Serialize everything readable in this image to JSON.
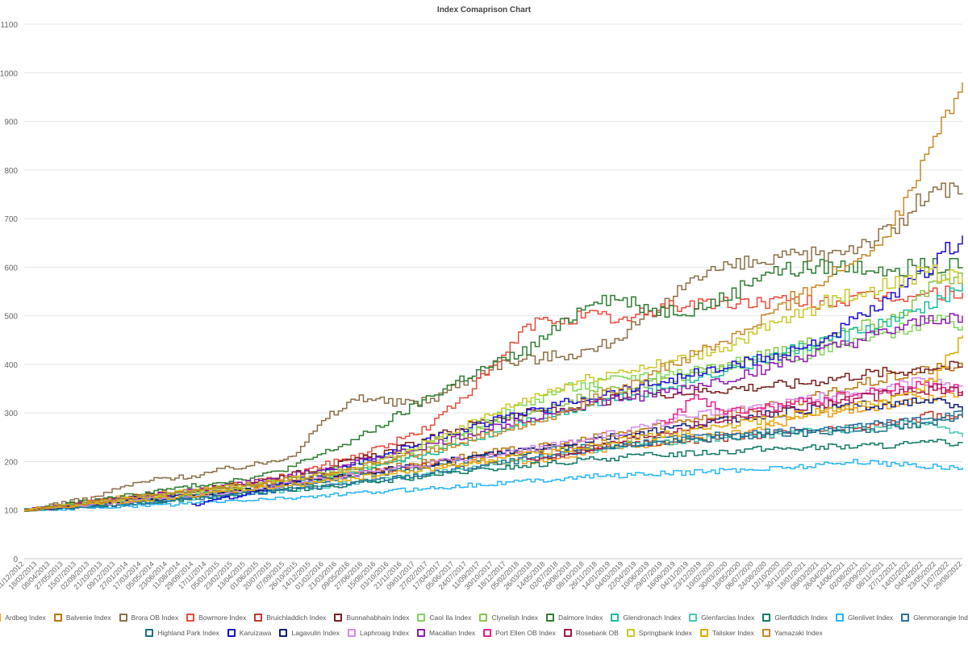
{
  "chart_data": {
    "type": "line",
    "title": "Index Comaprison Chart",
    "xlabel": "",
    "ylabel": "",
    "ylim": [
      0,
      1100
    ],
    "yticks": [
      0,
      100,
      200,
      300,
      400,
      500,
      600,
      700,
      800,
      900,
      1000,
      1100
    ],
    "grid": "horizontal",
    "legend_position": "bottom",
    "x_tick_labels": [
      "31/12/2012",
      "18/02/2013",
      "08/04/2013",
      "27/05/2013",
      "15/07/2013",
      "02/09/2013",
      "21/10/2013",
      "09/12/2013",
      "27/01/2014",
      "17/03/2014",
      "05/05/2014",
      "23/06/2014",
      "11/08/2014",
      "29/09/2014",
      "17/11/2014",
      "05/01/2015",
      "23/02/2015",
      "13/04/2015",
      "01/06/2015",
      "20/07/2015",
      "07/09/2015",
      "26/10/2015",
      "14/12/2015",
      "01/02/2016",
      "21/03/2016",
      "09/05/2016",
      "27/06/2016",
      "15/08/2016",
      "03/10/2016",
      "21/11/2016",
      "09/01/2017",
      "27/02/2017",
      "17/04/2017",
      "05/06/2017",
      "24/07/2017",
      "11/09/2017",
      "30/10/2017",
      "18/12/2017",
      "05/02/2018",
      "26/03/2018",
      "14/05/2018",
      "02/07/2018",
      "20/08/2018",
      "08/10/2018",
      "26/11/2018",
      "14/01/2019",
      "04/03/2019",
      "22/04/2019",
      "10/06/2019",
      "29/07/2019",
      "16/09/2019",
      "04/11/2019",
      "23/12/2019",
      "10/02/2020",
      "30/03/2020",
      "18/05/2020",
      "06/07/2020",
      "24/08/2020",
      "12/10/2020",
      "30/11/2020",
      "18/01/2021",
      "08/03/2021",
      "26/04/2021",
      "14/06/2021",
      "02/08/2021",
      "20/09/2021",
      "08/11/2021",
      "27/12/2021",
      "14/02/2022",
      "04/04/2022",
      "23/05/2022",
      "11/07/2022",
      "29/08/2022"
    ],
    "series": [
      {
        "name": "Ardbeg Index",
        "color": "#f39c12",
        "values": [
          100,
          110,
          118,
          128,
          135,
          140,
          150,
          155,
          162,
          170,
          178,
          185,
          190,
          195,
          200,
          200,
          210,
          225,
          230,
          240,
          250,
          255,
          265,
          290,
          300,
          310,
          320,
          330,
          345
        ]
      },
      {
        "name": "Balvenie Index",
        "color": "#b9770e",
        "values": [
          100,
          108,
          115,
          120,
          128,
          135,
          145,
          150,
          160,
          168,
          178,
          190,
          200,
          210,
          220,
          228,
          235,
          250,
          260,
          275,
          290,
          300,
          310,
          325,
          340,
          360,
          375,
          390,
          395
        ]
      },
      {
        "name": "Brora OB Index",
        "color": "#8b6f47",
        "values": [
          100,
          115,
          125,
          150,
          165,
          170,
          185,
          195,
          215,
          290,
          335,
          320,
          325,
          360,
          400,
          410,
          420,
          430,
          470,
          510,
          590,
          600,
          610,
          620,
          630,
          650,
          680,
          760,
          750
        ]
      },
      {
        "name": "Bowmore Index",
        "color": "#e74c3c",
        "values": [
          100,
          110,
          118,
          125,
          130,
          140,
          150,
          160,
          175,
          195,
          215,
          240,
          270,
          330,
          395,
          480,
          495,
          500,
          490,
          520,
          525,
          525,
          530,
          528,
          530,
          535,
          540,
          545,
          548
        ]
      },
      {
        "name": "Bruichladdich Index",
        "color": "#c0392b",
        "values": [
          100,
          106,
          112,
          118,
          125,
          130,
          138,
          145,
          155,
          165,
          175,
          185,
          195,
          205,
          215,
          220,
          225,
          230,
          235,
          240,
          245,
          250,
          255,
          260,
          265,
          270,
          280,
          295,
          290
        ]
      },
      {
        "name": "Bunnahabhain Index",
        "color": "#7b1f1f",
        "values": [
          100,
          108,
          116,
          125,
          135,
          140,
          150,
          160,
          175,
          190,
          205,
          225,
          245,
          270,
          290,
          300,
          305,
          320,
          335,
          340,
          345,
          350,
          355,
          360,
          370,
          380,
          385,
          395,
          395
        ]
      },
      {
        "name": "Caol Ila Index",
        "color": "#7ed957",
        "values": [
          100,
          108,
          115,
          122,
          130,
          136,
          145,
          152,
          165,
          180,
          195,
          215,
          235,
          260,
          290,
          320,
          350,
          360,
          375,
          380,
          390,
          400,
          410,
          420,
          430,
          450,
          470,
          490,
          480
        ]
      },
      {
        "name": "Clynelish Index",
        "color": "#8bc34a",
        "values": [
          100,
          106,
          112,
          118,
          125,
          130,
          138,
          145,
          155,
          170,
          185,
          200,
          225,
          250,
          280,
          300,
          320,
          340,
          355,
          365,
          380,
          400,
          420,
          440,
          460,
          480,
          500,
          560,
          580
        ]
      },
      {
        "name": "Dalmore Index",
        "color": "#2e7d32",
        "values": [
          100,
          110,
          120,
          130,
          140,
          150,
          160,
          170,
          190,
          220,
          250,
          290,
          330,
          370,
          400,
          430,
          480,
          540,
          530,
          510,
          515,
          540,
          590,
          595,
          600,
          600,
          600,
          600,
          600
        ]
      },
      {
        "name": "Glendronach Index",
        "color": "#1abc9c",
        "values": [
          100,
          106,
          112,
          118,
          124,
          130,
          138,
          145,
          155,
          165,
          180,
          195,
          215,
          235,
          260,
          285,
          300,
          320,
          335,
          350,
          370,
          390,
          410,
          430,
          450,
          470,
          490,
          520,
          570
        ]
      },
      {
        "name": "Glenfarclas Index",
        "color": "#48c9b0",
        "values": [
          100,
          104,
          108,
          112,
          118,
          124,
          130,
          136,
          142,
          150,
          158,
          166,
          175,
          185,
          195,
          205,
          215,
          225,
          235,
          240,
          245,
          250,
          255,
          260,
          265,
          270,
          275,
          280,
          250
        ]
      },
      {
        "name": "Glenfiddich Index",
        "color": "#117a65",
        "values": [
          100,
          104,
          108,
          112,
          118,
          124,
          130,
          136,
          142,
          148,
          155,
          162,
          170,
          178,
          185,
          192,
          198,
          205,
          210,
          215,
          218,
          222,
          225,
          228,
          230,
          232,
          234,
          238,
          240
        ]
      },
      {
        "name": "Glenlivet Index",
        "color": "#29b6f6",
        "values": [
          100,
          102,
          105,
          108,
          110,
          114,
          118,
          122,
          126,
          130,
          135,
          140,
          145,
          150,
          155,
          160,
          165,
          170,
          172,
          175,
          178,
          182,
          185,
          190,
          195,
          200,
          195,
          190,
          188
        ]
      },
      {
        "name": "Glenmorangie Index",
        "color": "#2471a3",
        "values": [
          100,
          104,
          108,
          112,
          118,
          124,
          130,
          136,
          142,
          150,
          158,
          166,
          175,
          185,
          195,
          205,
          215,
          225,
          235,
          245,
          250,
          255,
          260,
          265,
          270,
          275,
          280,
          290,
          300
        ]
      },
      {
        "name": "Highland Park Index",
        "color": "#1b6f8a",
        "values": [
          100,
          105,
          110,
          116,
          122,
          128,
          135,
          142,
          150,
          160,
          170,
          180,
          190,
          200,
          210,
          220,
          225,
          230,
          235,
          240,
          245,
          250,
          255,
          258,
          262,
          266,
          270,
          275,
          300
        ]
      },
      {
        "name": "Karuizawa",
        "color": "#1a0dd6",
        "values": [
          null,
          null,
          null,
          null,
          null,
          110,
          125,
          140,
          160,
          180,
          200,
          220,
          245,
          265,
          285,
          300,
          320,
          335,
          350,
          365,
          380,
          395,
          410,
          430,
          460,
          500,
          540,
          600,
          665
        ]
      },
      {
        "name": "Lagavulin Index",
        "color": "#0d1b7a",
        "values": [
          100,
          106,
          112,
          118,
          125,
          130,
          138,
          145,
          155,
          165,
          175,
          185,
          195,
          205,
          215,
          225,
          235,
          245,
          255,
          265,
          275,
          285,
          295,
          305,
          310,
          315,
          320,
          325,
          305
        ]
      },
      {
        "name": "Laphroaig Index",
        "color": "#d68ae8",
        "values": [
          100,
          106,
          112,
          118,
          125,
          130,
          138,
          145,
          155,
          165,
          175,
          185,
          195,
          205,
          215,
          225,
          235,
          250,
          265,
          280,
          295,
          305,
          315,
          325,
          335,
          345,
          355,
          370,
          355
        ]
      },
      {
        "name": "Macallan Index",
        "color": "#8e1ab0",
        "values": [
          100,
          108,
          116,
          124,
          132,
          140,
          150,
          160,
          172,
          185,
          200,
          215,
          232,
          250,
          270,
          290,
          305,
          320,
          330,
          340,
          355,
          370,
          390,
          410,
          430,
          450,
          470,
          490,
          500
        ]
      },
      {
        "name": "Port Ellen OB Index",
        "color": "#e91e8c",
        "values": [
          null,
          null,
          null,
          null,
          null,
          null,
          null,
          null,
          null,
          null,
          null,
          null,
          null,
          null,
          null,
          null,
          null,
          null,
          null,
          280,
          330,
          300,
          310,
          320,
          330,
          340,
          350,
          360,
          345
        ]
      },
      {
        "name": "Rosebank OB",
        "color": "#a3174d",
        "values": [
          null,
          null,
          null,
          null,
          null,
          null,
          null,
          null,
          null,
          null,
          null,
          null,
          null,
          null,
          null,
          200,
          215,
          230,
          245,
          260,
          275,
          290,
          300,
          310,
          320,
          330,
          340,
          350,
          345
        ]
      },
      {
        "name": "Springbank Index",
        "color": "#c8c82a",
        "values": [
          100,
          108,
          116,
          124,
          132,
          140,
          148,
          156,
          165,
          175,
          190,
          210,
          240,
          270,
          300,
          330,
          355,
          375,
          390,
          400,
          420,
          440,
          470,
          500,
          530,
          550,
          570,
          590,
          580
        ]
      },
      {
        "name": "Talisker Index",
        "color": "#e0a800",
        "values": [
          100,
          106,
          112,
          118,
          124,
          130,
          138,
          145,
          152,
          160,
          168,
          176,
          185,
          195,
          205,
          215,
          225,
          235,
          245,
          255,
          265,
          275,
          285,
          295,
          305,
          315,
          330,
          360,
          460
        ]
      },
      {
        "name": "Yamazaki Index",
        "color": "#c4892a",
        "values": [
          100,
          108,
          116,
          124,
          132,
          140,
          148,
          156,
          165,
          175,
          190,
          205,
          220,
          240,
          260,
          280,
          300,
          330,
          360,
          390,
          420,
          450,
          490,
          540,
          580,
          620,
          700,
          860,
          980
        ]
      }
    ]
  }
}
